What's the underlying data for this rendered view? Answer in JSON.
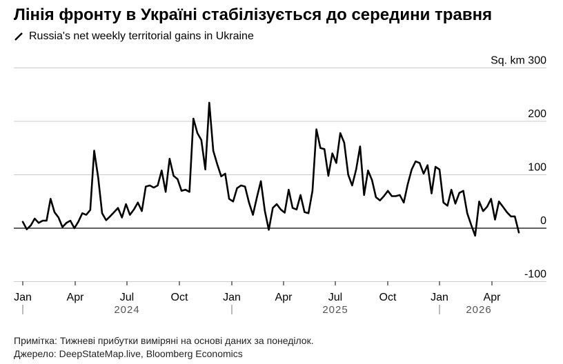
{
  "title": "Лінія фронту в Україні стабілізується до середини травня",
  "legend_label": "Russia's net weekly territorial gains in Ukraine",
  "unit_label": "Sq. km",
  "note": "Примітка: Тижневі прибутки виміряні на основі даних за понеділок.",
  "source": "Джерело: DeepStateMap.live, Bloomberg Economics",
  "colors": {
    "line": "#000000",
    "grid": "#cccccc",
    "zero": "#000000"
  },
  "chart_data": {
    "type": "line",
    "series": [
      {
        "values": [
          12,
          -2,
          5,
          18,
          10,
          14,
          14,
          55,
          30,
          20,
          2,
          10,
          14,
          0,
          12,
          28,
          25,
          34,
          145,
          95,
          28,
          15,
          22,
          30,
          38,
          20,
          45,
          25,
          35,
          48,
          32,
          78,
          80,
          76,
          80,
          108,
          68,
          130,
          98,
          92,
          70,
          72,
          68,
          205,
          178,
          165,
          110,
          235,
          145,
          120,
          97,
          102,
          55,
          50,
          75,
          80,
          78,
          48,
          25,
          58,
          88,
          32,
          -3,
          38,
          45,
          35,
          29,
          72,
          38,
          35,
          62,
          30,
          28,
          70,
          185,
          150,
          148,
          98,
          140,
          122,
          178,
          160,
          100,
          80,
          110,
          153,
          62,
          108,
          90,
          58,
          52,
          60,
          70,
          60,
          60,
          62,
          48,
          82,
          110,
          125,
          122,
          102,
          118,
          65,
          115,
          110,
          48,
          42,
          72,
          46,
          66,
          70,
          28,
          6,
          -14,
          50,
          32,
          40,
          55,
          16,
          50,
          40,
          30,
          22,
          22,
          -8
        ]
      }
    ],
    "x_ticks": [
      "Jan",
      "Apr",
      "Jul",
      "Oct",
      "Jan",
      "Apr",
      "Jul",
      "Oct",
      "Jan",
      "Apr"
    ],
    "years": [
      "2024",
      "2025",
      "2026"
    ],
    "y_ticks": [
      300,
      200,
      100,
      0,
      -100
    ],
    "ylim": [
      -100,
      300
    ],
    "grid": true,
    "y_axis_side": "right"
  }
}
